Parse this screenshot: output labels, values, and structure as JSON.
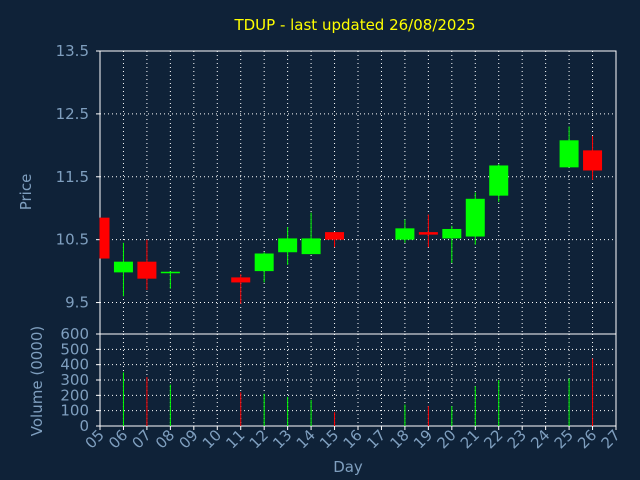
{
  "chart_data": {
    "type": "candlestick",
    "title": "TDUP - last updated 26/08/2025",
    "xlabel": "Day",
    "price_panel": {
      "ylabel": "Price",
      "ylim": [
        9.0,
        13.5
      ],
      "yticks": [
        9.5,
        10.5,
        11.5,
        12.5,
        13.5
      ],
      "grid": true
    },
    "volume_panel": {
      "ylabel": "Volume (0000)",
      "ylim": [
        0,
        600
      ],
      "yticks": [
        0,
        100,
        200,
        300,
        400,
        500,
        600
      ],
      "grid": true
    },
    "x_ticks": [
      "05",
      "06",
      "07",
      "08",
      "09",
      "10",
      "11",
      "12",
      "13",
      "14",
      "15",
      "16",
      "17",
      "18",
      "19",
      "20",
      "21",
      "22",
      "23",
      "24",
      "25",
      "26",
      "27"
    ],
    "candles": [
      {
        "day": "05",
        "open": 10.85,
        "high": 10.85,
        "low": 10.2,
        "close": 10.2,
        "volume": 0
      },
      {
        "day": "06",
        "open": 9.98,
        "high": 10.45,
        "low": 9.6,
        "close": 10.15,
        "volume": 350
      },
      {
        "day": "07",
        "open": 10.15,
        "high": 10.5,
        "low": 9.7,
        "close": 9.88,
        "volume": 320
      },
      {
        "day": "08",
        "open": 9.97,
        "high": 10.0,
        "low": 9.72,
        "close": 9.99,
        "volume": 270
      },
      {
        "day": "11",
        "open": 9.9,
        "high": 9.95,
        "low": 9.48,
        "close": 9.82,
        "volume": 220
      },
      {
        "day": "12",
        "open": 10.0,
        "high": 10.3,
        "low": 9.82,
        "close": 10.28,
        "volume": 210
      },
      {
        "day": "13",
        "open": 10.3,
        "high": 10.7,
        "low": 10.1,
        "close": 10.52,
        "volume": 190
      },
      {
        "day": "14",
        "open": 10.27,
        "high": 10.93,
        "low": 10.27,
        "close": 10.52,
        "volume": 170
      },
      {
        "day": "15",
        "open": 10.62,
        "high": 10.62,
        "low": 10.38,
        "close": 10.5,
        "volume": 90
      },
      {
        "day": "18",
        "open": 10.5,
        "high": 10.82,
        "low": 10.45,
        "close": 10.68,
        "volume": 140
      },
      {
        "day": "19",
        "open": 10.62,
        "high": 10.9,
        "low": 10.38,
        "close": 10.58,
        "volume": 130
      },
      {
        "day": "20",
        "open": 10.52,
        "high": 10.72,
        "low": 10.13,
        "close": 10.67,
        "volume": 130
      },
      {
        "day": "21",
        "open": 10.55,
        "high": 11.25,
        "low": 10.42,
        "close": 11.15,
        "volume": 260
      },
      {
        "day": "22",
        "open": 11.2,
        "high": 11.7,
        "low": 11.1,
        "close": 11.68,
        "volume": 300
      },
      {
        "day": "25",
        "open": 11.65,
        "high": 12.3,
        "low": 11.65,
        "close": 12.08,
        "volume": 310
      },
      {
        "day": "26",
        "open": 11.92,
        "high": 12.15,
        "low": 11.45,
        "close": 11.6,
        "volume": 440
      }
    ],
    "colors": {
      "background": "#0f2238",
      "panel_border": "#ffffff",
      "grid": "#ffffff",
      "up": "#00ff00",
      "down": "#ff0000",
      "title": "#ffff00",
      "axis_text": "#7f9fbf"
    }
  }
}
